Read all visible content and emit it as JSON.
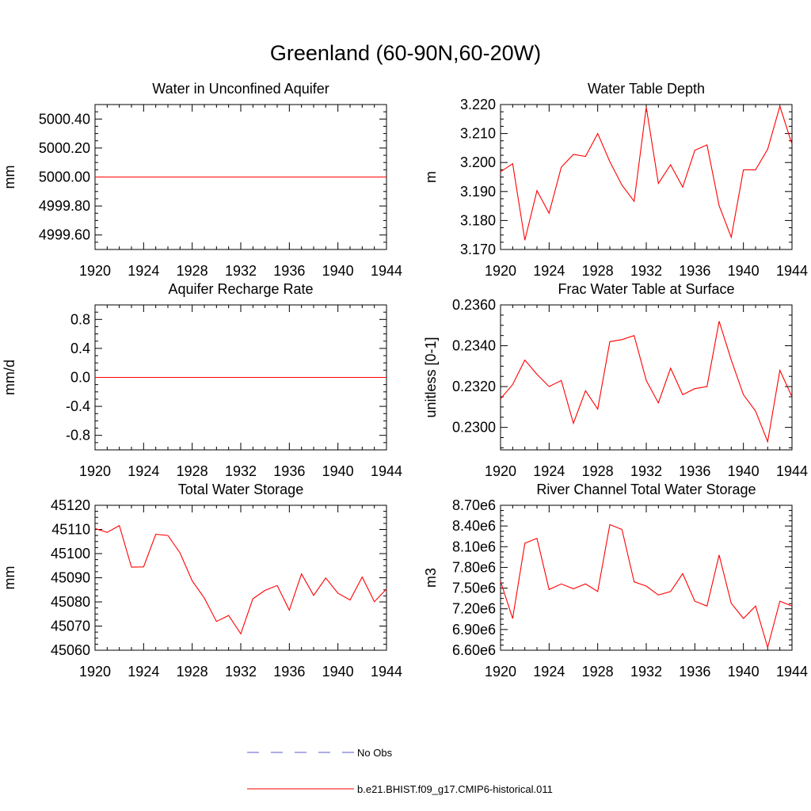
{
  "main_title": "Greenland (60-90N,60-20W)",
  "colors": {
    "model": "#ff0000",
    "obs": "#5a5ad0",
    "axis": "#000000"
  },
  "legend": [
    {
      "label": "No Obs",
      "style": "dashed",
      "color": "#5a5ad0"
    },
    {
      "label": "b.e21.BHIST.f09_g17.CMIP6-historical.011",
      "style": "solid",
      "color": "#ff0000"
    }
  ],
  "chart_data": [
    {
      "type": "line",
      "title": "Water in Unconfined Aquifer",
      "xlabel": "",
      "ylabel": "mm",
      "xlim": [
        1920,
        1944
      ],
      "ylim": [
        4999.5,
        5000.5
      ],
      "xticks": [
        1920,
        1924,
        1928,
        1932,
        1936,
        1940,
        1944
      ],
      "yticks": [
        4999.6,
        4999.8,
        5000.0,
        5000.2,
        5000.4
      ],
      "yticklabels": [
        "4999.60",
        "4999.80",
        "5000.00",
        "5000.20",
        "5000.40"
      ],
      "x": [
        1920,
        1921,
        1922,
        1923,
        1924,
        1925,
        1926,
        1927,
        1928,
        1929,
        1930,
        1931,
        1932,
        1933,
        1934,
        1935,
        1936,
        1937,
        1938,
        1939,
        1940,
        1941,
        1942,
        1943,
        1944
      ],
      "series": [
        {
          "values": [
            5000,
            5000,
            5000,
            5000,
            5000,
            5000,
            5000,
            5000,
            5000,
            5000,
            5000,
            5000,
            5000,
            5000,
            5000,
            5000,
            5000,
            5000,
            5000,
            5000,
            5000,
            5000,
            5000,
            5000,
            5000
          ]
        }
      ]
    },
    {
      "type": "line",
      "title": "Water Table Depth",
      "xlabel": "",
      "ylabel": "m",
      "xlim": [
        1920,
        1944
      ],
      "ylim": [
        3.17,
        3.22
      ],
      "xticks": [
        1920,
        1924,
        1928,
        1932,
        1936,
        1940,
        1944
      ],
      "yticks": [
        3.17,
        3.18,
        3.19,
        3.2,
        3.21,
        3.22
      ],
      "yticklabels": [
        "3.170",
        "3.180",
        "3.190",
        "3.200",
        "3.210",
        "3.220"
      ],
      "x": [
        1920,
        1921,
        1922,
        1923,
        1924,
        1925,
        1926,
        1927,
        1928,
        1929,
        1930,
        1931,
        1932,
        1933,
        1934,
        1935,
        1936,
        1937,
        1938,
        1939,
        1940,
        1941,
        1942,
        1943,
        1944
      ],
      "series": [
        {
          "values": [
            3.1968,
            3.1996,
            3.1732,
            3.1903,
            3.1825,
            3.1984,
            3.2028,
            3.2021,
            3.21,
            3.2003,
            3.1922,
            3.1866,
            3.2191,
            3.1928,
            3.1992,
            3.1915,
            3.2042,
            3.2061,
            3.1851,
            3.1742,
            3.1975,
            3.1975,
            3.2046,
            3.2194,
            3.2063
          ]
        }
      ]
    },
    {
      "type": "line",
      "title": "Aquifer Recharge Rate",
      "xlabel": "",
      "ylabel": "mm/d",
      "xlim": [
        1920,
        1944
      ],
      "ylim": [
        -1.0,
        1.0
      ],
      "xticks": [
        1920,
        1924,
        1928,
        1932,
        1936,
        1940,
        1944
      ],
      "yticks": [
        -0.8,
        -0.4,
        0.0,
        0.4,
        0.8
      ],
      "yticklabels": [
        "-0.8",
        "-0.4",
        "0.0",
        "0.4",
        "0.8"
      ],
      "x": [
        1920,
        1921,
        1922,
        1923,
        1924,
        1925,
        1926,
        1927,
        1928,
        1929,
        1930,
        1931,
        1932,
        1933,
        1934,
        1935,
        1936,
        1937,
        1938,
        1939,
        1940,
        1941,
        1942,
        1943,
        1944
      ],
      "series": [
        {
          "values": [
            0,
            0,
            0,
            0,
            0,
            0,
            0,
            0,
            0,
            0,
            0,
            0,
            0,
            0,
            0,
            0,
            0,
            0,
            0,
            0,
            0,
            0,
            0,
            0,
            0
          ]
        }
      ]
    },
    {
      "type": "line",
      "title": "Frac Water Table at Surface",
      "xlabel": "",
      "ylabel": "unitless [0-1]",
      "xlim": [
        1920,
        1944
      ],
      "ylim": [
        0.2289,
        0.236
      ],
      "xticks": [
        1920,
        1924,
        1928,
        1932,
        1936,
        1940,
        1944
      ],
      "yticks": [
        0.23,
        0.232,
        0.234,
        0.236
      ],
      "yticklabels": [
        "0.2300",
        "0.2320",
        "0.2340",
        "0.2360"
      ],
      "x": [
        1920,
        1921,
        1922,
        1923,
        1924,
        1925,
        1926,
        1927,
        1928,
        1929,
        1930,
        1931,
        1932,
        1933,
        1934,
        1935,
        1936,
        1937,
        1938,
        1939,
        1940,
        1941,
        1942,
        1943,
        1944
      ],
      "series": [
        {
          "values": [
            0.2314,
            0.2321,
            0.2333,
            0.2326,
            0.232,
            0.2323,
            0.2302,
            0.2318,
            0.2309,
            0.2342,
            0.2343,
            0.2345,
            0.2323,
            0.2312,
            0.2329,
            0.2316,
            0.2319,
            0.232,
            0.2352,
            0.2333,
            0.2316,
            0.2308,
            0.2293,
            0.2328,
            0.2315
          ]
        }
      ]
    },
    {
      "type": "line",
      "title": "Total Water Storage",
      "xlabel": "",
      "ylabel": "mm",
      "xlim": [
        1920,
        1944
      ],
      "ylim": [
        45060,
        45120
      ],
      "xticks": [
        1920,
        1924,
        1928,
        1932,
        1936,
        1940,
        1944
      ],
      "yticks": [
        45060,
        45070,
        45080,
        45090,
        45100,
        45110,
        45120
      ],
      "yticklabels": [
        "45060",
        "45070",
        "45080",
        "45090",
        "45100",
        "45110",
        "45120"
      ],
      "x": [
        1920,
        1921,
        1922,
        1923,
        1924,
        1925,
        1926,
        1927,
        1928,
        1929,
        1930,
        1931,
        1932,
        1933,
        1934,
        1935,
        1936,
        1937,
        1938,
        1939,
        1940,
        1941,
        1942,
        1943,
        1944
      ],
      "series": [
        {
          "values": [
            45110.4,
            45108.8,
            45111.6,
            45094.4,
            45094.5,
            45108.0,
            45107.5,
            45100.3,
            45088.7,
            45081.6,
            45071.9,
            45074.4,
            45066.8,
            45081.3,
            45084.8,
            45086.8,
            45076.6,
            45091.6,
            45082.7,
            45089.9,
            45083.6,
            45080.8,
            45090.3,
            45080.1,
            45085.3
          ]
        }
      ]
    },
    {
      "type": "line",
      "title": "River Channel Total Water Storage",
      "xlabel": "",
      "ylabel": "m3",
      "xlim": [
        1920,
        1944
      ],
      "ylim": [
        6600000,
        8700000
      ],
      "xticks": [
        1920,
        1924,
        1928,
        1932,
        1936,
        1940,
        1944
      ],
      "yticks": [
        6600000,
        6900000,
        7200000,
        7500000,
        7800000,
        8100000,
        8400000,
        8700000
      ],
      "yticklabels": [
        "6.60e6",
        "6.90e6",
        "7.20e6",
        "7.50e6",
        "7.80e6",
        "8.10e6",
        "8.40e6",
        "8.70e6"
      ],
      "x": [
        1920,
        1921,
        1922,
        1923,
        1924,
        1925,
        1926,
        1927,
        1928,
        1929,
        1930,
        1931,
        1932,
        1933,
        1934,
        1935,
        1936,
        1937,
        1938,
        1939,
        1940,
        1941,
        1942,
        1943,
        1944
      ],
      "series": [
        {
          "values": [
            7600000,
            7060000,
            8150000,
            8220000,
            7480000,
            7560000,
            7490000,
            7560000,
            7450000,
            8420000,
            8350000,
            7590000,
            7530000,
            7400000,
            7450000,
            7710000,
            7310000,
            7240000,
            7980000,
            7280000,
            7060000,
            7240000,
            6640000,
            7310000,
            7240000
          ]
        }
      ]
    }
  ]
}
